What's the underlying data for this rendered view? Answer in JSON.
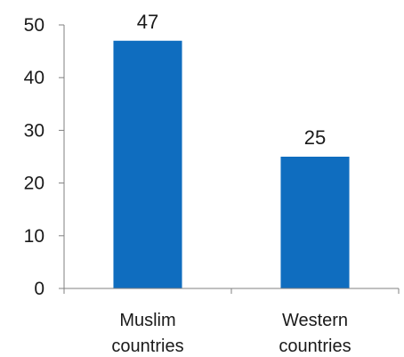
{
  "chart_data": {
    "type": "bar",
    "title": "",
    "xlabel": "",
    "ylabel": "",
    "categories": [
      "Muslim countries",
      "Western countries"
    ],
    "category_lines": [
      [
        "Muslim",
        "countries"
      ],
      [
        "Western",
        "countries"
      ]
    ],
    "values": [
      47,
      25
    ],
    "data_labels": [
      "47",
      "25"
    ],
    "ylim": [
      0,
      50
    ],
    "yticks": [
      0,
      10,
      20,
      30,
      40,
      50
    ],
    "bar_color": "#0f6dbf",
    "axis_color": "#808080",
    "grid": false,
    "legend": "none"
  }
}
